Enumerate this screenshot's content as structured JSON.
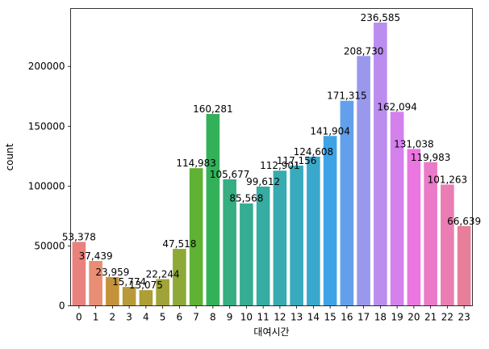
{
  "chart_data": {
    "type": "bar",
    "xlabel": "대여시간",
    "ylabel": "count",
    "categories": [
      "0",
      "1",
      "2",
      "3",
      "4",
      "5",
      "6",
      "7",
      "8",
      "9",
      "10",
      "11",
      "12",
      "13",
      "14",
      "15",
      "16",
      "17",
      "18",
      "19",
      "20",
      "21",
      "22",
      "23"
    ],
    "values": [
      53378,
      37439,
      23959,
      15774,
      13075,
      22244,
      47518,
      114983,
      160281,
      105677,
      85568,
      99612,
      112901,
      117156,
      124608,
      141904,
      171315,
      208730,
      236585,
      162094,
      131038,
      119983,
      101263,
      66639
    ],
    "data_labels": [
      "53,378",
      "37,439",
      "23,959",
      "15,774",
      "13,075",
      "22,244",
      "47,518",
      "114,983",
      "160,281",
      "105,677",
      "85,568",
      "99,612",
      "112,901",
      "117,156",
      "124,608",
      "141,904",
      "171,315",
      "208,730",
      "236,585",
      "162,094",
      "131,038",
      "119,983",
      "101,263",
      "66,639"
    ],
    "yticks": [
      0,
      50000,
      100000,
      150000,
      200000
    ],
    "ytick_labels": [
      "0",
      "50000",
      "100000",
      "150000",
      "200000"
    ],
    "ylim": [
      0,
      248414
    ],
    "grid": false,
    "legend": "none",
    "colors": [
      "#e9817c",
      "#e98d74",
      "#c4923b",
      "#b99a38",
      "#ad9e36",
      "#a0a338",
      "#8da937",
      "#5fb233",
      "#33b158",
      "#35ae81",
      "#35ad93",
      "#36aca2",
      "#37abaf",
      "#38aabd",
      "#3aa8cd",
      "#3ea3e6",
      "#62a0ec",
      "#9a98ec",
      "#ba8def",
      "#d480ed",
      "#ec76e1",
      "#eb7ac8",
      "#ea7db4",
      "#e77e9a"
    ]
  }
}
